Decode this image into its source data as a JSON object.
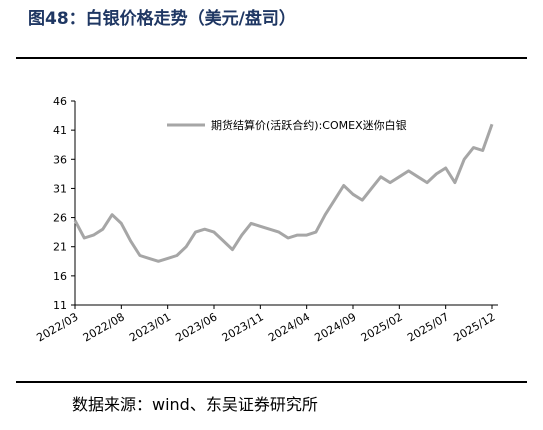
{
  "chart_data": {
    "type": "line",
    "title": "图48：白银价格走势（美元/盘司）",
    "source": "数据来源：wind、东吴证券研究所",
    "x": [
      "2022/03",
      "2022/04",
      "2022/05",
      "2022/06",
      "2022/07",
      "2022/08",
      "2022/09",
      "2022/10",
      "2022/11",
      "2022/12",
      "2023/01",
      "2023/02",
      "2023/03",
      "2023/04",
      "2023/05",
      "2023/06",
      "2023/07",
      "2023/08",
      "2023/09",
      "2023/10",
      "2023/11",
      "2023/12",
      "2024/01",
      "2024/02",
      "2024/03",
      "2024/04",
      "2024/05",
      "2024/06",
      "2024/07",
      "2024/08",
      "2024/09",
      "2024/10",
      "2024/11",
      "2024/12",
      "2025/01",
      "2025/02",
      "2025/03",
      "2025/04",
      "2025/05",
      "2025/06",
      "2025/07",
      "2025/08",
      "2025/09",
      "2025/10",
      "2025/11",
      "2025/12"
    ],
    "series": [
      {
        "name": "期货结算价(活跃合约):COMEX迷你白银",
        "color": "#a6a6a6",
        "values": [
          25.5,
          22.5,
          23,
          24,
          26.5,
          25,
          22,
          19.5,
          19,
          18.5,
          19,
          19.5,
          21,
          23.5,
          24,
          23.5,
          22,
          20.5,
          23,
          25,
          24.5,
          24,
          23.5,
          22.5,
          23,
          23,
          23.5,
          26.5,
          29,
          31.5,
          30,
          29,
          31,
          33,
          32,
          33,
          34,
          33,
          32,
          33.5,
          34.5,
          32,
          36,
          38,
          37.5,
          42
        ]
      }
    ],
    "xticks": [
      "2022/03",
      "2022/08",
      "2023/01",
      "2023/06",
      "2023/11",
      "2024/04",
      "2024/09",
      "2025/02",
      "2025/07",
      "2025/12"
    ],
    "ylim": [
      11,
      46
    ],
    "yticks": [
      11,
      16,
      21,
      26,
      31,
      36,
      41,
      46
    ]
  }
}
